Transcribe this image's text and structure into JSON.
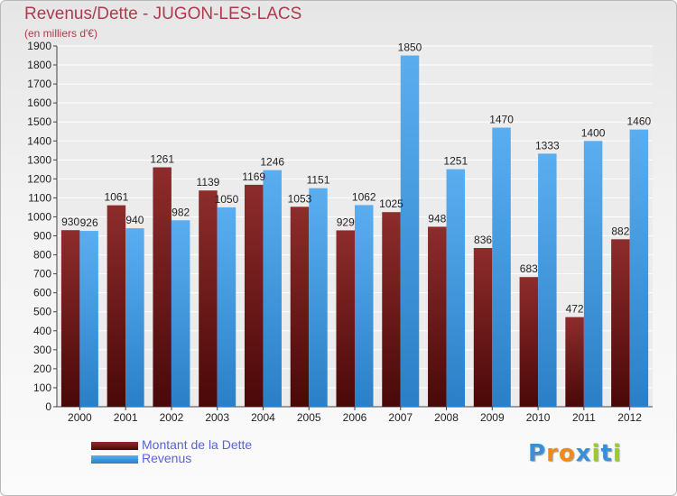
{
  "chart_data": {
    "type": "bar",
    "title": "Revenus/Dette - JUGON-LES-LACS",
    "subtitle": "(en milliers d'€)",
    "categories": [
      "2000",
      "2001",
      "2002",
      "2003",
      "2004",
      "2005",
      "2006",
      "2007",
      "2008",
      "2009",
      "2010",
      "2011",
      "2012"
    ],
    "series": [
      {
        "name": "Montant de la Dette",
        "color": "#7a1c1c",
        "values": [
          930,
          1061,
          1261,
          1139,
          1169,
          1053,
          929,
          1025,
          948,
          836,
          683,
          472,
          882
        ],
        "labels": [
          "930",
          "1061",
          "1261",
          "1139",
          "1169",
          "1053",
          "929",
          "1025",
          "948",
          "836",
          "683",
          "472",
          "882"
        ]
      },
      {
        "name": "Revenus",
        "color": "#3d97e0",
        "values": [
          926,
          940,
          982,
          1050,
          1246,
          1151,
          1062,
          1850,
          1251,
          1470,
          1333,
          1400,
          1460
        ],
        "labels": [
          "926",
          "940",
          "982",
          "1050",
          "1246",
          "1151",
          "1062",
          "1850",
          "1251",
          "1470",
          "1333",
          "1400",
          "1460"
        ]
      }
    ],
    "ylim": [
      0,
      1900
    ],
    "yticks": [
      0,
      100,
      200,
      300,
      400,
      500,
      600,
      700,
      800,
      900,
      1000,
      1100,
      1200,
      1300,
      1400,
      1500,
      1600,
      1700,
      1800,
      1900
    ],
    "grid": true,
    "legend": "bottom-left"
  },
  "logo": {
    "letters": [
      "P",
      "r",
      "o",
      "x",
      "i",
      "t",
      "i"
    ],
    "colors": [
      "#3b8fd6",
      "#f08a1c",
      "#f08a1c",
      "#3b8fd6",
      "#9ccc2b",
      "#3b8fd6",
      "#9ccc2b"
    ]
  }
}
